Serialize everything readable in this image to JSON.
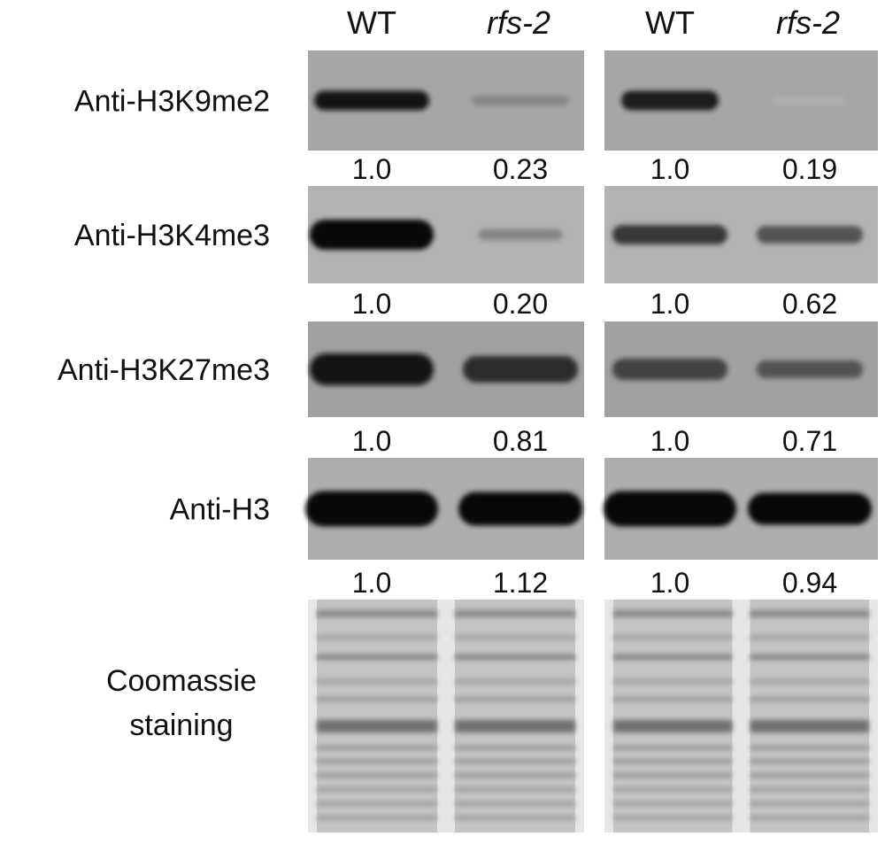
{
  "columns": [
    "WT",
    "rfs-2",
    "WT",
    "rfs-2"
  ],
  "rows": [
    {
      "label": "Anti-H3K9me2",
      "values": [
        "1.0",
        "0.23",
        "1.0",
        "0.19"
      ]
    },
    {
      "label": "Anti-H3K4me3",
      "values": [
        "1.0",
        "0.20",
        "1.0",
        "0.62"
      ]
    },
    {
      "label": "Anti-H3K27me3",
      "values": [
        "1.0",
        "0.81",
        "1.0",
        "0.71"
      ]
    },
    {
      "label": "Anti-H3",
      "values": [
        "1.0",
        "1.12",
        "1.0",
        "0.94"
      ]
    }
  ],
  "staining": {
    "label": [
      "Coomassie",
      "staining"
    ]
  }
}
